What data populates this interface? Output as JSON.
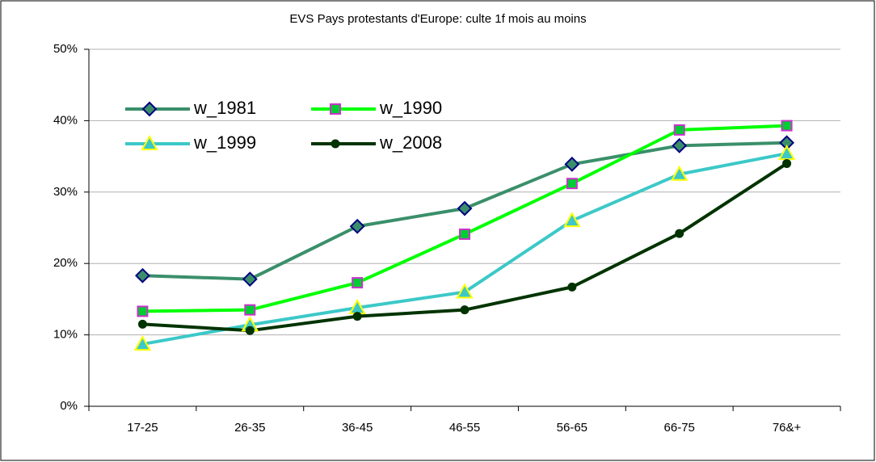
{
  "chart_data": {
    "type": "line",
    "title": "EVS Pays protestants d'Europe: culte 1f mois au moins",
    "categories": [
      "17-25",
      "26-35",
      "36-45",
      "46-55",
      "56-65",
      "66-75",
      "76&+"
    ],
    "series": [
      {
        "name": "w_1981",
        "color": "#3a8f6a",
        "marker": "diamond",
        "values": [
          18.3,
          17.8,
          25.2,
          27.7,
          33.9,
          36.5,
          36.9
        ]
      },
      {
        "name": "w_1990",
        "color": "#00ff00",
        "marker": "square",
        "values": [
          13.3,
          13.5,
          17.3,
          24.1,
          31.2,
          38.7,
          39.3
        ]
      },
      {
        "name": "w_1999",
        "color": "#3cc8c8",
        "marker": "triangle",
        "values": [
          8.7,
          11.4,
          13.8,
          16.0,
          26.0,
          32.5,
          35.4
        ]
      },
      {
        "name": "w_2008",
        "color": "#003300",
        "marker": "circle",
        "values": [
          11.5,
          10.6,
          12.6,
          13.5,
          16.7,
          24.2,
          34.0
        ]
      }
    ],
    "ylim": [
      0,
      50
    ],
    "yticks": [
      {
        "value": 0,
        "label": "0%"
      },
      {
        "value": 10,
        "label": "10%"
      },
      {
        "value": 20,
        "label": "20%"
      },
      {
        "value": 30,
        "label": "30%"
      },
      {
        "value": 40,
        "label": "40%"
      },
      {
        "value": 50,
        "label": "50%"
      }
    ],
    "grid": true
  }
}
